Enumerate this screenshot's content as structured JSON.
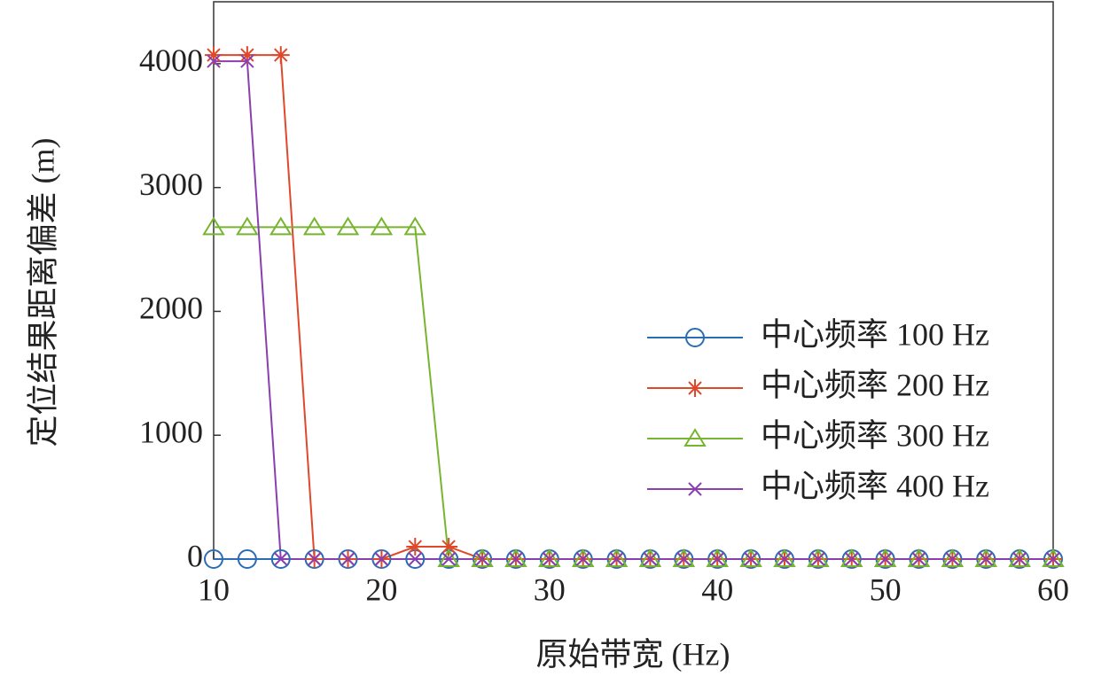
{
  "chart_data": {
    "type": "line",
    "x_label": "原始带宽 (Hz)",
    "y_label": "定位结果距离偏差 (m)",
    "x": [
      10,
      12,
      14,
      16,
      18,
      20,
      22,
      24,
      26,
      28,
      30,
      32,
      34,
      36,
      38,
      40,
      42,
      44,
      46,
      48,
      50,
      52,
      54,
      56,
      58,
      60
    ],
    "series": [
      {
        "name": "中心频率 100 Hz",
        "color": "#2a6db5",
        "marker": "circle",
        "values": [
          0,
          0,
          0,
          0,
          0,
          0,
          0,
          0,
          0,
          0,
          0,
          0,
          0,
          0,
          0,
          0,
          0,
          0,
          0,
          0,
          0,
          0,
          0,
          0,
          0,
          0
        ]
      },
      {
        "name": "中心频率 200 Hz",
        "color": "#e0482a",
        "marker": "star",
        "values": [
          4070,
          4070,
          4070,
          0,
          0,
          0,
          100,
          100,
          0,
          0,
          0,
          0,
          0,
          0,
          0,
          0,
          0,
          0,
          0,
          0,
          0,
          0,
          0,
          0,
          0,
          0
        ]
      },
      {
        "name": "中心频率 300 Hz",
        "color": "#77b530",
        "marker": "triangle",
        "values": [
          2680,
          2680,
          2680,
          2680,
          2680,
          2680,
          2680,
          0,
          0,
          0,
          0,
          0,
          0,
          0,
          0,
          0,
          0,
          0,
          0,
          0,
          0,
          0,
          0,
          0,
          0,
          0
        ]
      },
      {
        "name": "中心频率 400 Hz",
        "color": "#8a3fb0",
        "marker": "x",
        "values": [
          4020,
          4020,
          0,
          0,
          0,
          0,
          0,
          0,
          0,
          0,
          0,
          0,
          0,
          0,
          0,
          0,
          0,
          0,
          0,
          0,
          0,
          0,
          0,
          0,
          0,
          0
        ]
      }
    ],
    "xlim": [
      10,
      60
    ],
    "xticks": [
      10,
      20,
      30,
      40,
      50,
      60
    ],
    "ylim": [
      0,
      4500
    ],
    "yticks": [
      0,
      1000,
      2000,
      3000,
      4000
    ],
    "legend": "right"
  }
}
